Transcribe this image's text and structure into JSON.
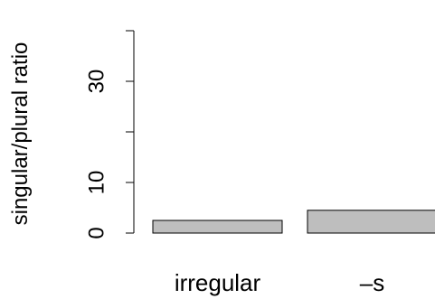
{
  "chart_data": {
    "type": "bar",
    "categories": [
      "irregular",
      "–s"
    ],
    "values": [
      2.5,
      4.5
    ],
    "ylabel": "singular/plural ratio",
    "xlabel": "",
    "ylim": [
      0,
      40
    ],
    "yticks": [
      0,
      10,
      20,
      30,
      40
    ],
    "ytick_labels": [
      "0",
      "10",
      "",
      "30",
      ""
    ],
    "grid": false,
    "bar_color": "#bebebe",
    "bar_edge_color": "#000000"
  }
}
